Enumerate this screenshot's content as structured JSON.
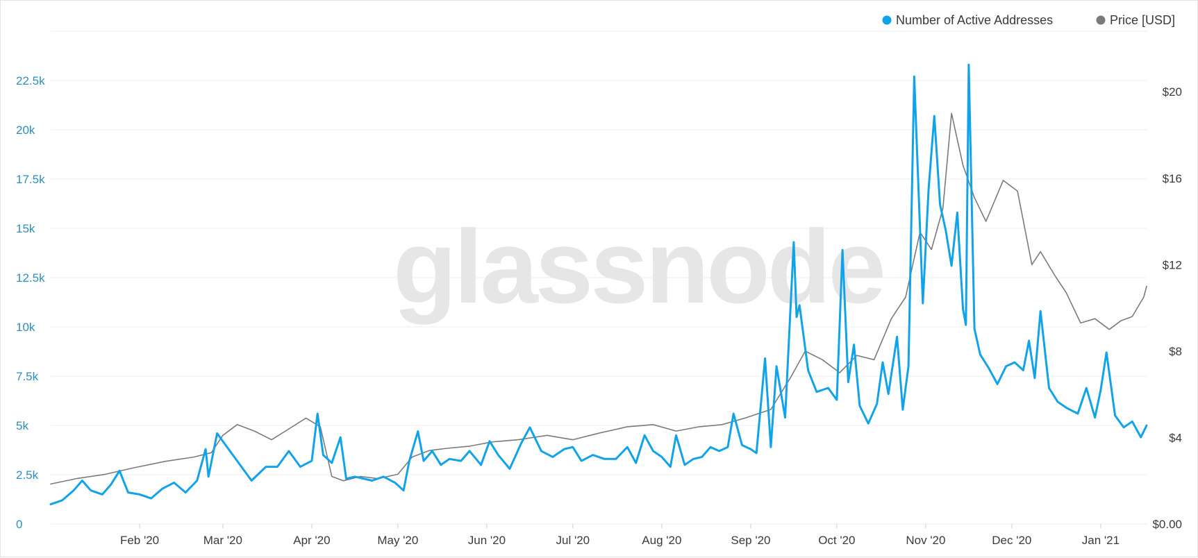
{
  "chart_data": {
    "type": "line",
    "watermark": "glassnode",
    "legend": {
      "placement": "top-right",
      "items": [
        {
          "label": "Number of Active Addresses",
          "color": "#11a3ea"
        },
        {
          "label": "Price [USD]",
          "color": "#7a7a7a"
        }
      ]
    },
    "x_axis": {
      "range": [
        "2020-01-01",
        "2021-01-17"
      ],
      "ticks": [
        {
          "label": "Feb '20",
          "date": "2020-02-01"
        },
        {
          "label": "Mar '20",
          "date": "2020-03-01"
        },
        {
          "label": "Apr '20",
          "date": "2020-04-01"
        },
        {
          "label": "May '20",
          "date": "2020-05-01"
        },
        {
          "label": "Jun '20",
          "date": "2020-06-01"
        },
        {
          "label": "Jul '20",
          "date": "2020-07-01"
        },
        {
          "label": "Aug '20",
          "date": "2020-08-01"
        },
        {
          "label": "Sep '20",
          "date": "2020-09-01"
        },
        {
          "label": "Oct '20",
          "date": "2020-10-01"
        },
        {
          "label": "Nov '20",
          "date": "2020-11-01"
        },
        {
          "label": "Dec '20",
          "date": "2020-12-01"
        },
        {
          "label": "Jan '21",
          "date": "2021-01-01"
        }
      ]
    },
    "y_left": {
      "range": [
        0,
        25000
      ],
      "ticks": [
        {
          "label": "0",
          "value": 0
        },
        {
          "label": "2.5k",
          "value": 2500
        },
        {
          "label": "5k",
          "value": 5000
        },
        {
          "label": "7.5k",
          "value": 7500
        },
        {
          "label": "10k",
          "value": 10000
        },
        {
          "label": "12.5k",
          "value": 12500
        },
        {
          "label": "15k",
          "value": 15000
        },
        {
          "label": "17.5k",
          "value": 17500
        },
        {
          "label": "20k",
          "value": 20000
        },
        {
          "label": "22.5k",
          "value": 22500
        }
      ]
    },
    "y_right": {
      "range": [
        0,
        22.8
      ],
      "ticks": [
        {
          "label": "$0.00",
          "value": 0
        },
        {
          "label": "$4",
          "value": 4
        },
        {
          "label": "$8",
          "value": 8
        },
        {
          "label": "$12",
          "value": 12
        },
        {
          "label": "$16",
          "value": 16
        },
        {
          "label": "$20",
          "value": 20
        }
      ]
    },
    "grid": true,
    "series": [
      {
        "name": "Number of Active Addresses",
        "axis": "left",
        "color": "#11a3ea",
        "points": [
          [
            "2020-01-01",
            1000
          ],
          [
            "2020-01-05",
            1200
          ],
          [
            "2020-01-09",
            1700
          ],
          [
            "2020-01-12",
            2200
          ],
          [
            "2020-01-15",
            1700
          ],
          [
            "2020-01-19",
            1500
          ],
          [
            "2020-01-22",
            2000
          ],
          [
            "2020-01-25",
            2700
          ],
          [
            "2020-01-28",
            1600
          ],
          [
            "2020-02-01",
            1500
          ],
          [
            "2020-02-05",
            1300
          ],
          [
            "2020-02-09",
            1800
          ],
          [
            "2020-02-13",
            2100
          ],
          [
            "2020-02-17",
            1600
          ],
          [
            "2020-02-21",
            2200
          ],
          [
            "2020-02-24",
            3800
          ],
          [
            "2020-02-25",
            2400
          ],
          [
            "2020-02-28",
            4600
          ],
          [
            "2020-03-03",
            3800
          ],
          [
            "2020-03-07",
            3000
          ],
          [
            "2020-03-11",
            2200
          ],
          [
            "2020-03-16",
            2900
          ],
          [
            "2020-03-20",
            2900
          ],
          [
            "2020-03-24",
            3700
          ],
          [
            "2020-03-28",
            2900
          ],
          [
            "2020-04-01",
            3200
          ],
          [
            "2020-04-03",
            5600
          ],
          [
            "2020-04-05",
            3500
          ],
          [
            "2020-04-08",
            3100
          ],
          [
            "2020-04-11",
            4400
          ],
          [
            "2020-04-13",
            2300
          ],
          [
            "2020-04-16",
            2400
          ],
          [
            "2020-04-19",
            2300
          ],
          [
            "2020-04-22",
            2200
          ],
          [
            "2020-04-26",
            2400
          ],
          [
            "2020-04-30",
            2100
          ],
          [
            "2020-05-03",
            1700
          ],
          [
            "2020-05-05",
            3200
          ],
          [
            "2020-05-08",
            4700
          ],
          [
            "2020-05-10",
            3200
          ],
          [
            "2020-05-13",
            3700
          ],
          [
            "2020-05-16",
            3000
          ],
          [
            "2020-05-19",
            3300
          ],
          [
            "2020-05-23",
            3200
          ],
          [
            "2020-05-26",
            3700
          ],
          [
            "2020-05-30",
            3000
          ],
          [
            "2020-06-02",
            4200
          ],
          [
            "2020-06-05",
            3500
          ],
          [
            "2020-06-09",
            2800
          ],
          [
            "2020-06-13",
            4100
          ],
          [
            "2020-06-16",
            4900
          ],
          [
            "2020-06-20",
            3700
          ],
          [
            "2020-06-24",
            3400
          ],
          [
            "2020-06-28",
            3800
          ],
          [
            "2020-07-01",
            3900
          ],
          [
            "2020-07-04",
            3200
          ],
          [
            "2020-07-08",
            3500
          ],
          [
            "2020-07-12",
            3300
          ],
          [
            "2020-07-16",
            3300
          ],
          [
            "2020-07-20",
            3900
          ],
          [
            "2020-07-23",
            3100
          ],
          [
            "2020-07-26",
            4500
          ],
          [
            "2020-07-29",
            3700
          ],
          [
            "2020-08-01",
            3400
          ],
          [
            "2020-08-04",
            2900
          ],
          [
            "2020-08-06",
            4500
          ],
          [
            "2020-08-09",
            3000
          ],
          [
            "2020-08-12",
            3300
          ],
          [
            "2020-08-15",
            3400
          ],
          [
            "2020-08-18",
            3900
          ],
          [
            "2020-08-21",
            3700
          ],
          [
            "2020-08-24",
            3900
          ],
          [
            "2020-08-26",
            5600
          ],
          [
            "2020-08-29",
            4000
          ],
          [
            "2020-09-01",
            3800
          ],
          [
            "2020-09-03",
            3600
          ],
          [
            "2020-09-06",
            8400
          ],
          [
            "2020-09-08",
            3900
          ],
          [
            "2020-09-10",
            8000
          ],
          [
            "2020-09-13",
            5400
          ],
          [
            "2020-09-16",
            14300
          ],
          [
            "2020-09-17",
            10500
          ],
          [
            "2020-09-18",
            11100
          ],
          [
            "2020-09-21",
            7800
          ],
          [
            "2020-09-24",
            6700
          ],
          [
            "2020-09-28",
            6900
          ],
          [
            "2020-10-01",
            6300
          ],
          [
            "2020-10-03",
            13900
          ],
          [
            "2020-10-05",
            7200
          ],
          [
            "2020-10-07",
            9100
          ],
          [
            "2020-10-09",
            6000
          ],
          [
            "2020-10-12",
            5100
          ],
          [
            "2020-10-15",
            6100
          ],
          [
            "2020-10-17",
            8200
          ],
          [
            "2020-10-19",
            6600
          ],
          [
            "2020-10-22",
            9500
          ],
          [
            "2020-10-24",
            5800
          ],
          [
            "2020-10-26",
            8000
          ],
          [
            "2020-10-28",
            22700
          ],
          [
            "2020-10-31",
            11200
          ],
          [
            "2020-11-02",
            17000
          ],
          [
            "2020-11-04",
            20700
          ],
          [
            "2020-11-06",
            16200
          ],
          [
            "2020-11-08",
            14900
          ],
          [
            "2020-11-10",
            13100
          ],
          [
            "2020-11-12",
            15800
          ],
          [
            "2020-11-14",
            10900
          ],
          [
            "2020-11-15",
            10100
          ],
          [
            "2020-11-16",
            23300
          ],
          [
            "2020-11-18",
            9900
          ],
          [
            "2020-11-20",
            8600
          ],
          [
            "2020-11-23",
            7900
          ],
          [
            "2020-11-26",
            7100
          ],
          [
            "2020-11-29",
            8000
          ],
          [
            "2020-12-02",
            8200
          ],
          [
            "2020-12-05",
            7800
          ],
          [
            "2020-12-07",
            9300
          ],
          [
            "2020-12-09",
            7400
          ],
          [
            "2020-12-11",
            10800
          ],
          [
            "2020-12-14",
            6900
          ],
          [
            "2020-12-17",
            6200
          ],
          [
            "2020-12-20",
            5900
          ],
          [
            "2020-12-24",
            5600
          ],
          [
            "2020-12-27",
            6900
          ],
          [
            "2020-12-30",
            5400
          ],
          [
            "2021-01-01",
            6800
          ],
          [
            "2021-01-03",
            8700
          ],
          [
            "2021-01-06",
            5500
          ],
          [
            "2021-01-09",
            4900
          ],
          [
            "2021-01-12",
            5200
          ],
          [
            "2021-01-15",
            4400
          ],
          [
            "2021-01-17",
            5000
          ]
        ]
      },
      {
        "name": "Price [USD]",
        "axis": "right",
        "color": "#7a7a7a",
        "points": [
          [
            "2020-01-01",
            1.85
          ],
          [
            "2020-01-10",
            2.1
          ],
          [
            "2020-01-20",
            2.3
          ],
          [
            "2020-01-30",
            2.6
          ],
          [
            "2020-02-10",
            2.9
          ],
          [
            "2020-02-20",
            3.1
          ],
          [
            "2020-02-26",
            3.3
          ],
          [
            "2020-03-01",
            4.1
          ],
          [
            "2020-03-06",
            4.6
          ],
          [
            "2020-03-12",
            4.3
          ],
          [
            "2020-03-18",
            3.9
          ],
          [
            "2020-03-24",
            4.4
          ],
          [
            "2020-03-30",
            4.9
          ],
          [
            "2020-04-04",
            4.5
          ],
          [
            "2020-04-08",
            2.2
          ],
          [
            "2020-04-12",
            2.0
          ],
          [
            "2020-04-18",
            2.2
          ],
          [
            "2020-04-24",
            2.1
          ],
          [
            "2020-05-01",
            2.3
          ],
          [
            "2020-05-06",
            3.1
          ],
          [
            "2020-05-12",
            3.4
          ],
          [
            "2020-05-18",
            3.5
          ],
          [
            "2020-05-26",
            3.6
          ],
          [
            "2020-06-03",
            3.8
          ],
          [
            "2020-06-12",
            3.9
          ],
          [
            "2020-06-22",
            4.1
          ],
          [
            "2020-07-01",
            3.9
          ],
          [
            "2020-07-10",
            4.2
          ],
          [
            "2020-07-20",
            4.5
          ],
          [
            "2020-07-29",
            4.6
          ],
          [
            "2020-08-06",
            4.3
          ],
          [
            "2020-08-14",
            4.5
          ],
          [
            "2020-08-22",
            4.6
          ],
          [
            "2020-08-30",
            4.9
          ],
          [
            "2020-09-08",
            5.3
          ],
          [
            "2020-09-15",
            6.8
          ],
          [
            "2020-09-20",
            8.0
          ],
          [
            "2020-09-26",
            7.6
          ],
          [
            "2020-10-02",
            7.0
          ],
          [
            "2020-10-08",
            7.8
          ],
          [
            "2020-10-14",
            7.6
          ],
          [
            "2020-10-20",
            9.5
          ],
          [
            "2020-10-25",
            10.5
          ],
          [
            "2020-10-30",
            13.5
          ],
          [
            "2020-11-03",
            12.7
          ],
          [
            "2020-11-07",
            14.6
          ],
          [
            "2020-11-10",
            19.0
          ],
          [
            "2020-11-14",
            16.6
          ],
          [
            "2020-11-18",
            15.1
          ],
          [
            "2020-11-22",
            14.0
          ],
          [
            "2020-11-28",
            15.9
          ],
          [
            "2020-12-03",
            15.4
          ],
          [
            "2020-12-08",
            12.0
          ],
          [
            "2020-12-11",
            12.6
          ],
          [
            "2020-12-16",
            11.5
          ],
          [
            "2020-12-20",
            10.7
          ],
          [
            "2020-12-25",
            9.3
          ],
          [
            "2020-12-30",
            9.5
          ],
          [
            "2021-01-04",
            9.0
          ],
          [
            "2021-01-08",
            9.4
          ],
          [
            "2021-01-12",
            9.6
          ],
          [
            "2021-01-16",
            10.5
          ],
          [
            "2021-01-17",
            11.0
          ]
        ]
      }
    ]
  }
}
